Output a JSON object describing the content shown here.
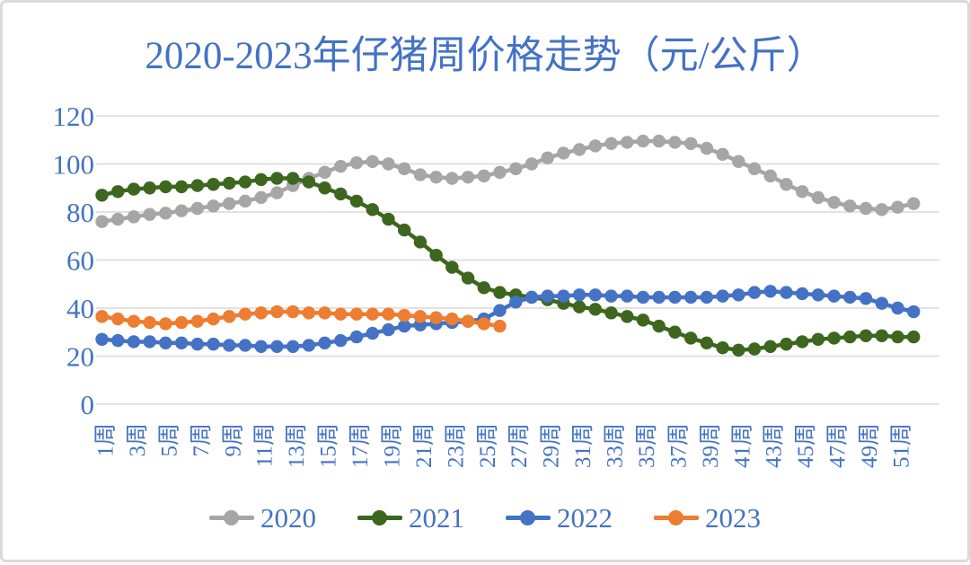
{
  "colors": {
    "text_accent": "#4472c4",
    "gridline": "#d9d9d9",
    "frame_border": "#dadada",
    "series_2020": "#a6a6a6",
    "series_2021": "#3d661e",
    "series_2022": "#4472c4",
    "series_2023": "#ed7d31"
  },
  "chart_data": {
    "type": "line",
    "title": "2020-2023年仔猪周价格走势（元/公斤）",
    "xlabel": "",
    "ylabel": "",
    "ylim": [
      0,
      120
    ],
    "y_ticks": [
      0,
      20,
      40,
      60,
      80,
      100,
      120
    ],
    "x_unit": "周",
    "x_weeks_total": 52,
    "x_tick_labels": [
      "1周",
      "3周",
      "5周",
      "7周",
      "9周",
      "11周",
      "13周",
      "15周",
      "17周",
      "19周",
      "21周",
      "23周",
      "25周",
      "27周",
      "29周",
      "31周",
      "33周",
      "35周",
      "37周",
      "39周",
      "41周",
      "43周",
      "45周",
      "47周",
      "49周",
      "51周"
    ],
    "grid": "horizontal",
    "legend_position": "bottom",
    "marker": "circle",
    "series": [
      {
        "name": "2020",
        "color": "#a6a6a6",
        "start_week": 1,
        "values": [
          76,
          77,
          78,
          79,
          79.5,
          80.5,
          81.5,
          82.5,
          83.5,
          84.5,
          86,
          88,
          91,
          94,
          96.5,
          99,
          100.5,
          101,
          100,
          98,
          95.5,
          94.5,
          94,
          94.5,
          95,
          96.5,
          98,
          100,
          102.5,
          104.5,
          106,
          107.5,
          108.5,
          109,
          109.5,
          109.5,
          109,
          108.5,
          106.5,
          104,
          101,
          98,
          95,
          91.5,
          88.5,
          86,
          84,
          82.5,
          81.5,
          81,
          82,
          83.5
        ]
      },
      {
        "name": "2021",
        "color": "#3d661e",
        "start_week": 1,
        "values": [
          87,
          88.5,
          89.5,
          90,
          90.5,
          90.5,
          91,
          91.5,
          92,
          92.5,
          93.5,
          94,
          94,
          92.5,
          90,
          87.5,
          84.5,
          81,
          77,
          72.5,
          67.5,
          62,
          57,
          52.5,
          48.5,
          46.5,
          45.5,
          44.5,
          43.5,
          42,
          40.5,
          39.5,
          38,
          36.5,
          35,
          32.5,
          30,
          27.5,
          25.5,
          23.5,
          22.5,
          23,
          24,
          25,
          26,
          27,
          27.5,
          28,
          28.5,
          28.5,
          28,
          28
        ]
      },
      {
        "name": "2022",
        "color": "#4472c4",
        "start_week": 1,
        "values": [
          27,
          26.5,
          26,
          26,
          25.5,
          25.5,
          25,
          25,
          24.5,
          24.5,
          24,
          24,
          24,
          24.5,
          25.5,
          26.5,
          28,
          29.5,
          31,
          32.5,
          33,
          33.5,
          34,
          34.5,
          35.5,
          39,
          42.5,
          44.5,
          45,
          45,
          45.5,
          45.5,
          45,
          45,
          44.5,
          44.5,
          44.5,
          44.5,
          44.5,
          45,
          45.5,
          46.5,
          47,
          46.5,
          46,
          45.5,
          45,
          44.5,
          44,
          42,
          40,
          38.5
        ]
      },
      {
        "name": "2023",
        "color": "#ed7d31",
        "start_week": 1,
        "values": [
          36.5,
          35.5,
          34.5,
          34,
          33.5,
          34,
          34.5,
          35.5,
          36.5,
          37.5,
          38,
          38.5,
          38.5,
          38,
          38,
          37.5,
          37.5,
          37.5,
          37.5,
          37,
          36.5,
          36,
          35.5,
          34.5,
          33.5,
          32.5
        ]
      }
    ]
  }
}
